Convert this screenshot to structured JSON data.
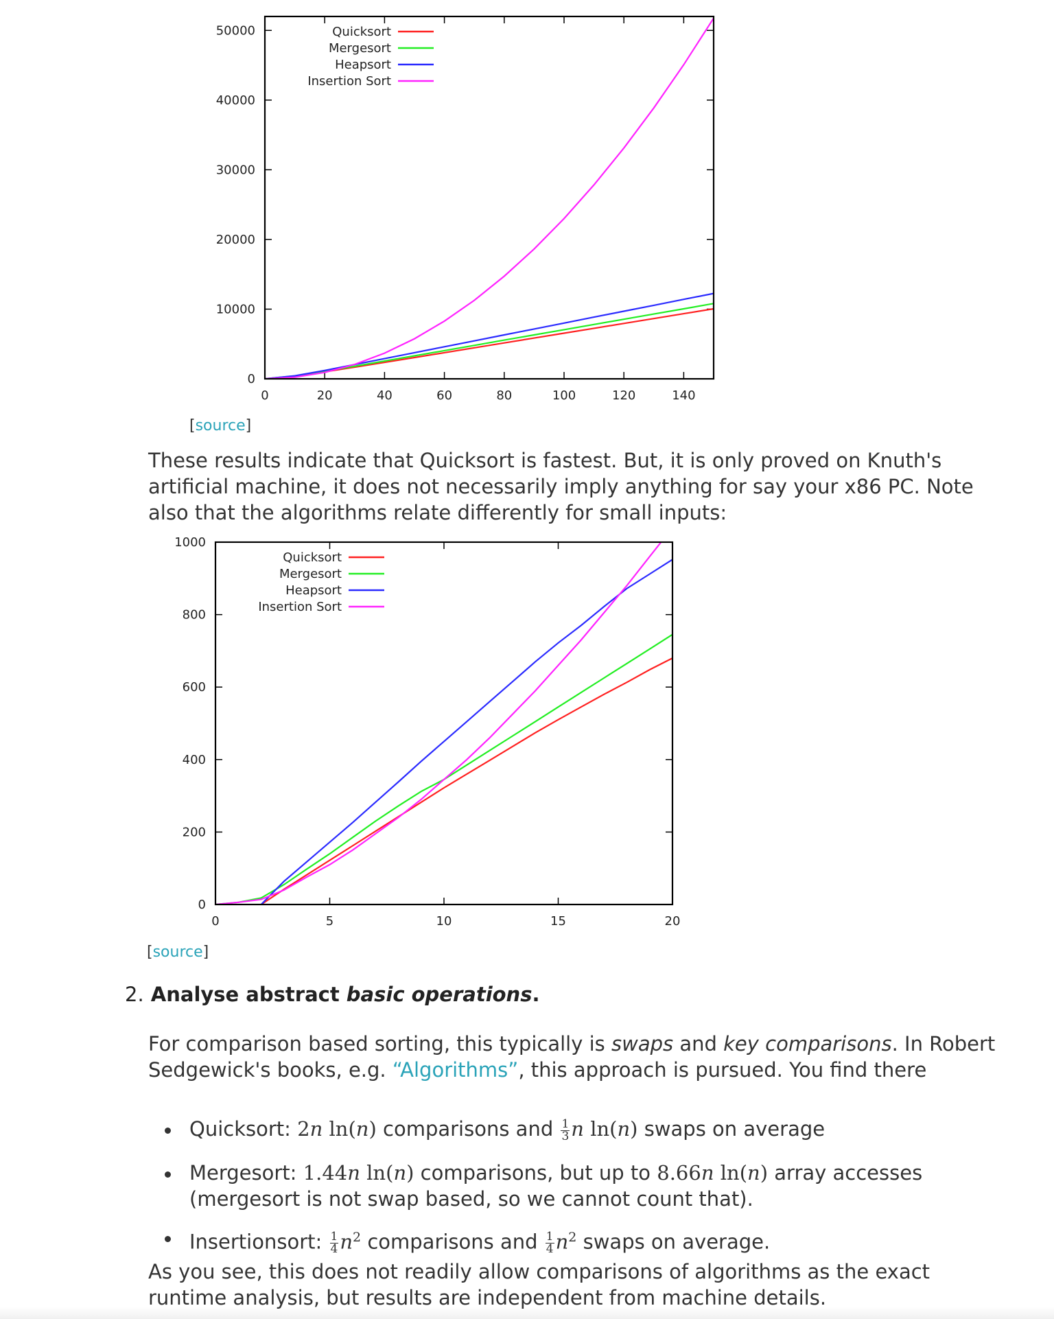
{
  "chart_data": [
    {
      "type": "line",
      "title": "",
      "xlabel": "",
      "ylabel": "",
      "xlim": [
        0,
        150
      ],
      "ylim": [
        0,
        52000
      ],
      "xticks": [
        0,
        20,
        40,
        60,
        80,
        100,
        120,
        140
      ],
      "yticks": [
        0,
        10000,
        20000,
        30000,
        40000,
        50000
      ],
      "legend_position": "top-left",
      "grid": false,
      "x": [
        0,
        10,
        20,
        30,
        40,
        50,
        60,
        70,
        80,
        90,
        100,
        110,
        120,
        130,
        140,
        150
      ],
      "series": [
        {
          "name": "Quicksort",
          "color": "#ff2020",
          "values": [
            0,
            370,
            1000,
            1670,
            2350,
            3050,
            3750,
            4450,
            5150,
            5850,
            6550,
            7250,
            7950,
            8650,
            9350,
            10050
          ]
        },
        {
          "name": "Mergesort",
          "color": "#22ee22",
          "values": [
            0,
            400,
            1080,
            1800,
            2550,
            3300,
            4050,
            4800,
            5550,
            6300,
            7050,
            7800,
            8550,
            9300,
            10050,
            10800
          ]
        },
        {
          "name": "Heapsort",
          "color": "#2a2aff",
          "values": [
            0,
            430,
            1200,
            2050,
            2900,
            3750,
            4600,
            5450,
            6300,
            7150,
            8000,
            8850,
            9700,
            10550,
            11400,
            12250
          ]
        },
        {
          "name": "Insertion Sort",
          "color": "#ff22ff",
          "values": [
            0,
            230,
            920,
            2070,
            3680,
            5750,
            8280,
            11270,
            14720,
            18630,
            23000,
            27830,
            33120,
            38870,
            45080,
            51750
          ]
        }
      ]
    },
    {
      "type": "line",
      "title": "",
      "xlabel": "",
      "ylabel": "",
      "xlim": [
        0,
        20
      ],
      "ylim": [
        0,
        1000
      ],
      "xticks": [
        0,
        5,
        10,
        15,
        20
      ],
      "yticks": [
        0,
        200,
        400,
        600,
        800,
        1000
      ],
      "legend_position": "top-left",
      "grid": false,
      "x": [
        0,
        1,
        2,
        3,
        4,
        5,
        6,
        7,
        8,
        9,
        10,
        11,
        12,
        13,
        14,
        15,
        16,
        17,
        18,
        19,
        20
      ],
      "series": [
        {
          "name": "Quicksort",
          "color": "#ff2020",
          "values": [
            null,
            -20,
            0,
            42,
            82,
            122,
            162,
            202,
            242,
            282,
            322,
            360,
            398,
            436,
            474,
            510,
            545,
            580,
            613,
            648,
            680
          ]
        },
        {
          "name": "Mergesort",
          "color": "#22ee22",
          "values": [
            0,
            6,
            18,
            55,
            98,
            140,
            185,
            230,
            272,
            312,
            345,
            385,
            425,
            465,
            505,
            545,
            585,
            625,
            665,
            705,
            745
          ]
        },
        {
          "name": "Heapsort",
          "color": "#2a2aff",
          "values": [
            null,
            -20,
            0,
            64,
            118,
            172,
            226,
            282,
            338,
            395,
            450,
            505,
            560,
            615,
            670,
            722,
            770,
            822,
            872,
            912,
            952
          ]
        },
        {
          "name": "Insertion Sort",
          "color": "#ff22ff",
          "values": [
            0,
            6,
            14,
            40,
            76,
            110,
            150,
            195,
            240,
            290,
            345,
            400,
            460,
            525,
            590,
            660,
            730,
            805,
            880,
            960,
            1040
          ]
        }
      ]
    }
  ],
  "source1": {
    "open": "[",
    "link": "source",
    "close": "]"
  },
  "para1": "These results indicate that Quicksort is fastest. But, it is only proved on Knuth's artificial machine, it does not necessarily imply anything for say your x86 PC. Note also that the algorithms relate differently for small inputs:",
  "source2": {
    "open": "[",
    "link": "source",
    "close": "]"
  },
  "step2": {
    "number": "2.",
    "bold": "Analyse abstract",
    "italic": "basic operations",
    "end": "."
  },
  "para2": {
    "a": "For comparison based sorting, this typically is",
    "swaps": "swaps",
    "and": "and",
    "keycomp": "key comparisons",
    "b": ". In Robert Sedgewick's books, e.g.",
    "link": "“Algorithms”",
    "c": ", this approach is pursued. You find there"
  },
  "bullets": {
    "quick": {
      "label": "Quicksort:",
      "f1": "2",
      "f1n": "n",
      "ln": "ln(",
      "n": "n",
      "close": ")",
      "comparisons": "comparisons and",
      "num": "1",
      "den": "3",
      "swaps": "swaps on average"
    },
    "merge": {
      "label": "Mergesort:",
      "f1": "1.44",
      "f2": "8.66",
      "ln": "ln(",
      "n": "n",
      "close": ")",
      "text1": "comparisons, but up to",
      "text2": "array accesses (mergesort is not swap based, so we cannot count that)."
    },
    "insert": {
      "label": "Insertionsort:",
      "num": "1",
      "den": "4",
      "n": "n",
      "sq": "2",
      "comparisons": "comparisons and",
      "swaps": "swaps on average."
    }
  },
  "para3": "As you see, this does not readily allow comparisons of algorithms as the exact runtime analysis, but results are independent from machine details."
}
